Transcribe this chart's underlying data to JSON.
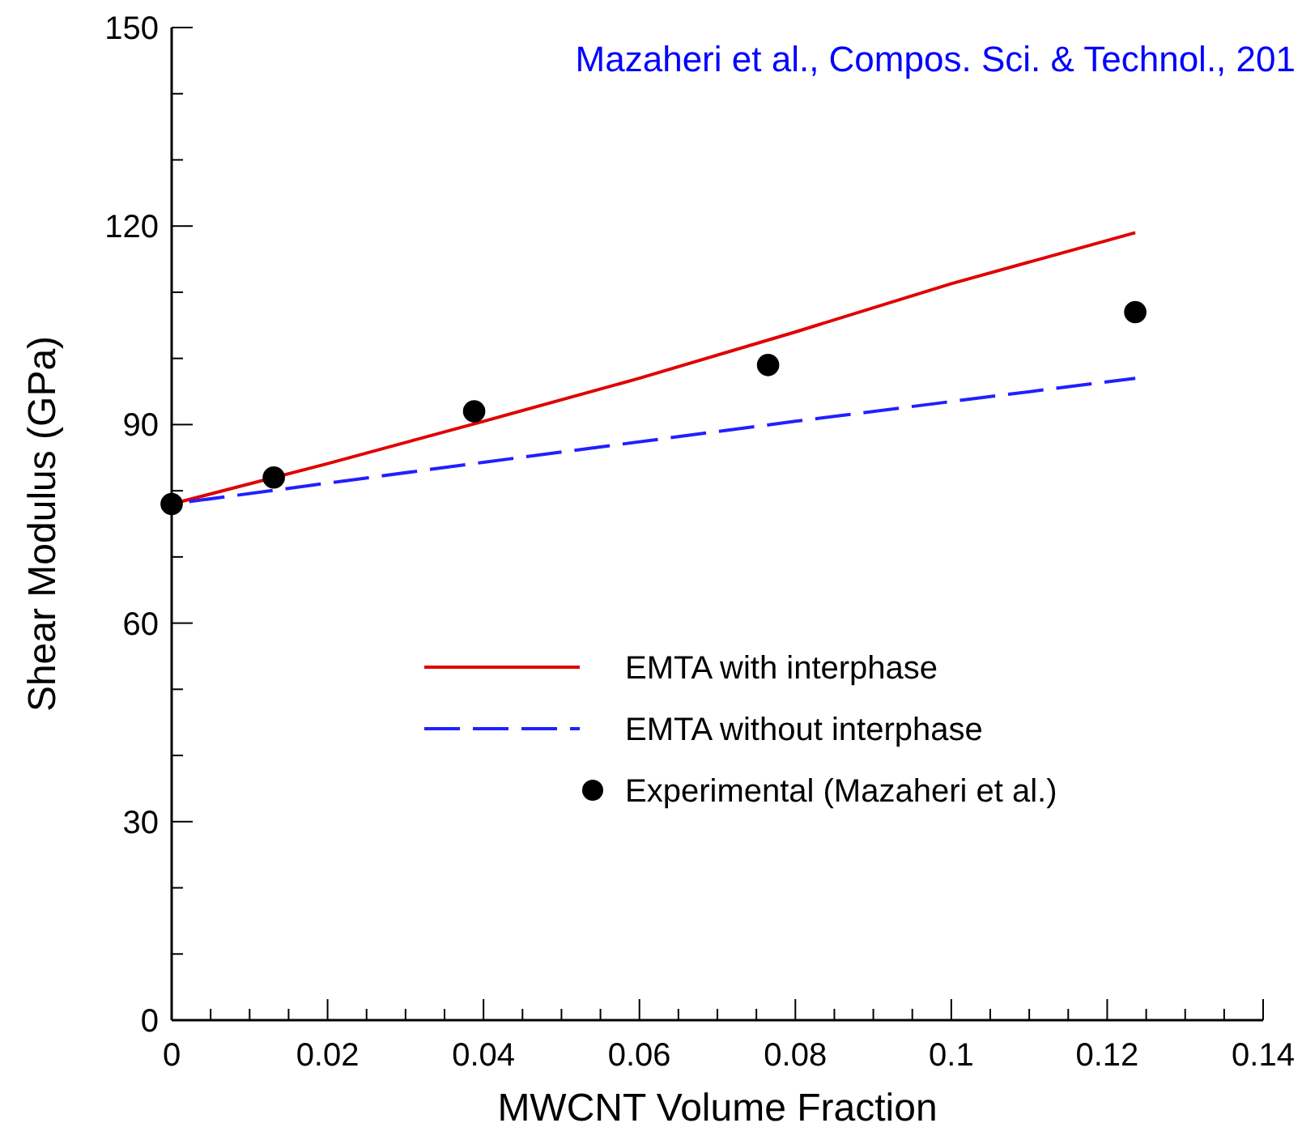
{
  "chart_data": {
    "type": "line",
    "annotations": [
      "Mazaheri et al., Compos. Sci. & Technol., 201"
    ],
    "xlabel": "MWCNT Volume Fraction",
    "ylabel": "Shear Modulus (GPa)",
    "xlim": [
      0,
      0.14
    ],
    "ylim": [
      0,
      150
    ],
    "xticks": [
      0,
      {
        "value": 0.005,
        "label": null
      },
      {
        "value": 0.01,
        "label": null
      },
      {
        "value": 0.015,
        "label": null
      },
      0.02,
      {
        "value": 0.025,
        "label": null
      },
      {
        "value": 0.03,
        "label": null
      },
      {
        "value": 0.035,
        "label": null
      },
      0.04,
      {
        "value": 0.045,
        "label": null
      },
      {
        "value": 0.05,
        "label": null
      },
      {
        "value": 0.055,
        "label": null
      },
      0.06,
      {
        "value": 0.065,
        "label": null
      },
      {
        "value": 0.07,
        "label": null
      },
      {
        "value": 0.075,
        "label": null
      },
      0.08,
      {
        "value": 0.085,
        "label": null
      },
      {
        "value": 0.09,
        "label": null
      },
      {
        "value": 0.095,
        "label": null
      },
      0.1,
      {
        "value": 0.105,
        "label": null
      },
      {
        "value": 0.11,
        "label": null
      },
      {
        "value": 0.115,
        "label": null
      },
      0.12,
      {
        "value": 0.125,
        "label": null
      },
      {
        "value": 0.13,
        "label": null
      },
      {
        "value": 0.135,
        "label": null
      },
      0.14
    ],
    "yticks": [
      0,
      {
        "value": 10,
        "label": null
      },
      {
        "value": 20,
        "label": null
      },
      30,
      {
        "value": 40,
        "label": null
      },
      {
        "value": 50,
        "label": null
      },
      60,
      {
        "value": 70,
        "label": null
      },
      {
        "value": 80,
        "label": null
      },
      90,
      {
        "value": 100,
        "label": null
      },
      {
        "value": 110,
        "label": null
      },
      120,
      {
        "value": 130,
        "label": null
      },
      {
        "value": 140,
        "label": null
      },
      150
    ],
    "grid": false,
    "legend": "bottom right",
    "series": [
      {
        "name": "EMTA with interphase",
        "color": "#e00000",
        "line_style": "solid",
        "marker": "none",
        "x": [
          0,
          0.02,
          0.04,
          0.06,
          0.08,
          0.1,
          0.1236
        ],
        "values": [
          78,
          84.1,
          90.5,
          97,
          104,
          111.3,
          119
        ]
      },
      {
        "name": "EMTA without interphase",
        "color": "#2020ff",
        "line_style": "dashed",
        "marker": "none",
        "x": [
          0,
          0.04,
          0.08,
          0.1236
        ],
        "values": [
          78,
          84.3,
          90.5,
          97
        ]
      },
      {
        "name": "Experimental (Mazaheri et al.)",
        "type": "scatter",
        "color": "#000000",
        "marker": "circle",
        "x": [
          0,
          0.0131,
          0.0388,
          0.0765,
          0.1236
        ],
        "values": [
          78,
          82,
          92,
          99,
          107
        ]
      }
    ]
  }
}
